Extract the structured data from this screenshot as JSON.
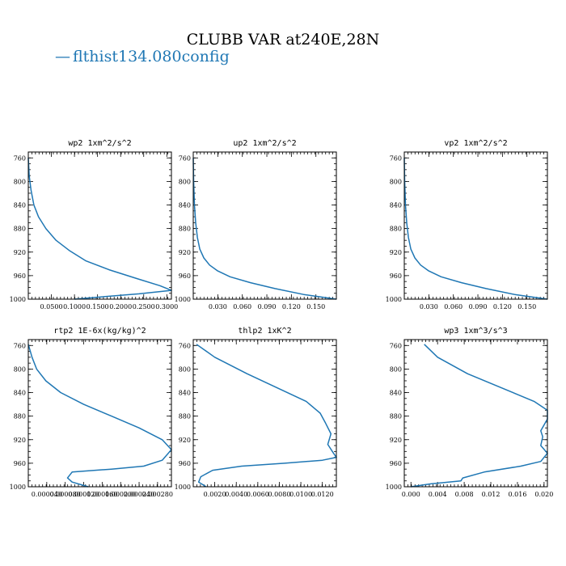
{
  "title": "CLUBB VAR at240E,28N",
  "legend": {
    "line": "—",
    "label": "flthist134.080config"
  },
  "colors": {
    "series": "#1f77b4"
  },
  "chart_data": [
    {
      "type": "line",
      "title": "wp2  1xm^2/s^2",
      "xlim": [
        0,
        0.31
      ],
      "ylim": [
        1000,
        750
      ],
      "xticks": [
        0.05,
        0.1,
        0.15,
        0.2,
        0.25,
        0.3
      ],
      "xtick_labels": [
        "0.0500",
        "0.1000",
        "0.1500",
        "0.2000",
        "0.2500",
        "0.3000"
      ],
      "yticks": [
        760,
        800,
        840,
        880,
        920,
        960,
        1000
      ],
      "series": [
        {
          "x": [
            0.0,
            0.002,
            0.006,
            0.012,
            0.022,
            0.038,
            0.06,
            0.09,
            0.125,
            0.175,
            0.235,
            0.285,
            0.31,
            0.24,
            0.16,
            0.1
          ],
          "y": [
            760,
            790,
            815,
            840,
            860,
            880,
            900,
            918,
            935,
            950,
            965,
            977,
            985,
            991,
            996,
            1000
          ]
        }
      ]
    },
    {
      "type": "line",
      "title": "up2  1xm^2/s^2",
      "xlim": [
        0,
        0.175
      ],
      "ylim": [
        1000,
        750
      ],
      "xticks": [
        0.03,
        0.06,
        0.09,
        0.12,
        0.15
      ],
      "xtick_labels": [
        "0.030",
        "0.060",
        "0.090",
        "0.120",
        "0.150"
      ],
      "yticks": [
        760,
        800,
        840,
        880,
        920,
        960,
        1000
      ],
      "series": [
        {
          "x": [
            0.0,
            0.0005,
            0.0015,
            0.003,
            0.005,
            0.008,
            0.013,
            0.02,
            0.03,
            0.045,
            0.07,
            0.1,
            0.135,
            0.175
          ],
          "y": [
            760,
            800,
            840,
            870,
            895,
            915,
            930,
            942,
            952,
            962,
            972,
            982,
            992,
            1000
          ]
        }
      ]
    },
    {
      "type": "line",
      "title": "vp2  1xm^2/s^2",
      "xlim": [
        0,
        0.175
      ],
      "ylim": [
        1000,
        750
      ],
      "xticks": [
        0.03,
        0.06,
        0.09,
        0.12,
        0.15
      ],
      "xtick_labels": [
        "0.030",
        "0.060",
        "0.090",
        "0.120",
        "0.150"
      ],
      "yticks": [
        760,
        800,
        840,
        880,
        920,
        960,
        1000
      ],
      "series": [
        {
          "x": [
            0.0,
            0.0005,
            0.0015,
            0.003,
            0.005,
            0.008,
            0.013,
            0.02,
            0.03,
            0.045,
            0.07,
            0.1,
            0.135,
            0.175
          ],
          "y": [
            760,
            800,
            840,
            870,
            895,
            915,
            930,
            942,
            952,
            962,
            972,
            982,
            992,
            1000
          ]
        }
      ]
    },
    {
      "type": "line",
      "title": "rtp2  1E-6x(kg/kg)^2",
      "xlim": [
        0,
        0.00031
      ],
      "ylim": [
        1000,
        750
      ],
      "xticks": [
        4e-05,
        8e-05,
        0.00012,
        0.00016,
        0.0002,
        0.00024,
        0.00028
      ],
      "xtick_labels": [
        "0.000040",
        "0.000080",
        "0.000120",
        "0.000160",
        "0.000200",
        "0.000240",
        "0.000280"
      ],
      "yticks": [
        760,
        800,
        840,
        880,
        920,
        960,
        1000
      ],
      "series": [
        {
          "x": [
            0.0,
            8e-06,
            1.8e-05,
            3.8e-05,
            7e-05,
            0.00012,
            0.00018,
            0.00024,
            0.00029,
            0.00031,
            0.00029,
            0.00025,
            0.00018,
            9.5e-05,
            8.5e-05,
            9.5e-05,
            0.00013
          ],
          "y": [
            758,
            780,
            800,
            820,
            840,
            860,
            880,
            900,
            920,
            937,
            955,
            965,
            970,
            975,
            985,
            992,
            1000
          ]
        }
      ]
    },
    {
      "type": "line",
      "title": "thlp2  1xK^2",
      "xlim": [
        0,
        0.0133
      ],
      "ylim": [
        1000,
        750
      ],
      "xticks": [
        0.002,
        0.004,
        0.006,
        0.008,
        0.01,
        0.012
      ],
      "xtick_labels": [
        "0.0020",
        "0.0040",
        "0.0060",
        "0.0080",
        "0.0100",
        "0.0120"
      ],
      "yticks": [
        760,
        800,
        840,
        880,
        920,
        960,
        1000
      ],
      "series": [
        {
          "x": [
            0.0003,
            0.002,
            0.005,
            0.0105,
            0.0118,
            0.0123,
            0.0128,
            0.0125,
            0.013,
            0.0133,
            0.012,
            0.0085,
            0.0045,
            0.0018,
            0.0007,
            0.0005,
            0.0012
          ],
          "y": [
            758,
            780,
            808,
            855,
            875,
            892,
            910,
            928,
            942,
            950,
            955,
            960,
            965,
            972,
            983,
            992,
            1000
          ]
        }
      ]
    },
    {
      "type": "line",
      "title": "wp3  1xm^3/s^3",
      "xlim": [
        -0.001,
        0.0205
      ],
      "ylim": [
        1000,
        750
      ],
      "xticks": [
        0.0,
        0.004,
        0.008,
        0.012,
        0.016,
        0.02
      ],
      "xtick_labels": [
        "0.000",
        "0.004",
        "0.008",
        "0.012",
        "0.016",
        "0.020"
      ],
      "yticks": [
        760,
        800,
        840,
        880,
        920,
        960,
        1000
      ],
      "series": [
        {
          "x": [
            0.002,
            0.004,
            0.0085,
            0.0185,
            0.0205,
            0.0205,
            0.0195,
            0.0198,
            0.0195,
            0.0205,
            0.0195,
            0.0165,
            0.011,
            0.0078,
            0.0075,
            0.003,
            0.0
          ],
          "y": [
            758,
            780,
            808,
            855,
            870,
            885,
            905,
            915,
            930,
            943,
            957,
            965,
            975,
            985,
            990,
            995,
            1000
          ]
        }
      ]
    }
  ]
}
